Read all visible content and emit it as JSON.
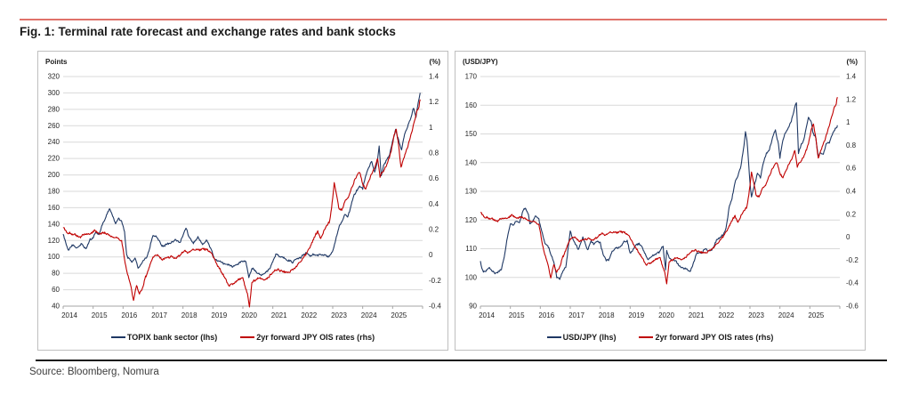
{
  "figure": {
    "title": "Fig. 1: Terminal rate forecast and exchange rates and bank stocks",
    "source": "Source: Bloomberg, Nomura",
    "accent_rule_color": "#e0726a",
    "bottom_rule_color": "#1a1a1a"
  },
  "colors": {
    "blue": "#1f3864",
    "red": "#c00000",
    "grid": "#d9d9d9",
    "axis": "#a6a6a6",
    "tick_text": "#262626"
  },
  "series_points": {
    "topix": [
      [
        2014.0,
        128
      ],
      [
        2014.1,
        115
      ],
      [
        2014.17,
        107
      ],
      [
        2014.3,
        112
      ],
      [
        2014.45,
        108
      ],
      [
        2014.6,
        113
      ],
      [
        2014.75,
        110
      ],
      [
        2014.9,
        120
      ],
      [
        2015.0,
        122
      ],
      [
        2015.1,
        130
      ],
      [
        2015.2,
        128
      ],
      [
        2015.35,
        143
      ],
      [
        2015.45,
        152
      ],
      [
        2015.55,
        158
      ],
      [
        2015.65,
        148
      ],
      [
        2015.75,
        138
      ],
      [
        2015.85,
        146
      ],
      [
        2015.95,
        142
      ],
      [
        2016.05,
        128
      ],
      [
        2016.12,
        100
      ],
      [
        2016.2,
        95
      ],
      [
        2016.3,
        90
      ],
      [
        2016.4,
        96
      ],
      [
        2016.5,
        84
      ],
      [
        2016.6,
        88
      ],
      [
        2016.7,
        94
      ],
      [
        2016.8,
        98
      ],
      [
        2016.9,
        110
      ],
      [
        2017.0,
        124
      ],
      [
        2017.1,
        126
      ],
      [
        2017.2,
        120
      ],
      [
        2017.3,
        114
      ],
      [
        2017.45,
        118
      ],
      [
        2017.6,
        120
      ],
      [
        2017.75,
        124
      ],
      [
        2017.9,
        120
      ],
      [
        2018.0,
        130
      ],
      [
        2018.1,
        138
      ],
      [
        2018.2,
        126
      ],
      [
        2018.35,
        120
      ],
      [
        2018.5,
        126
      ],
      [
        2018.65,
        118
      ],
      [
        2018.8,
        122
      ],
      [
        2018.95,
        112
      ],
      [
        2019.05,
        100
      ],
      [
        2019.2,
        98
      ],
      [
        2019.35,
        94
      ],
      [
        2019.5,
        92
      ],
      [
        2019.65,
        89
      ],
      [
        2019.8,
        93
      ],
      [
        2019.95,
        98
      ],
      [
        2020.1,
        97
      ],
      [
        2020.2,
        78
      ],
      [
        2020.3,
        88
      ],
      [
        2020.45,
        84
      ],
      [
        2020.6,
        80
      ],
      [
        2020.75,
        83
      ],
      [
        2020.9,
        88
      ],
      [
        2021.0,
        97
      ],
      [
        2021.1,
        106
      ],
      [
        2021.2,
        103
      ],
      [
        2021.35,
        99
      ],
      [
        2021.5,
        96
      ],
      [
        2021.65,
        94
      ],
      [
        2021.8,
        99
      ],
      [
        2021.95,
        102
      ],
      [
        2022.1,
        108
      ],
      [
        2022.25,
        104
      ],
      [
        2022.4,
        106
      ],
      [
        2022.55,
        103
      ],
      [
        2022.7,
        105
      ],
      [
        2022.85,
        102
      ],
      [
        2023.0,
        108
      ],
      [
        2023.1,
        120
      ],
      [
        2023.2,
        133
      ],
      [
        2023.3,
        142
      ],
      [
        2023.4,
        150
      ],
      [
        2023.5,
        147
      ],
      [
        2023.6,
        158
      ],
      [
        2023.7,
        172
      ],
      [
        2023.8,
        180
      ],
      [
        2023.9,
        186
      ],
      [
        2024.0,
        182
      ],
      [
        2024.1,
        196
      ],
      [
        2024.2,
        206
      ],
      [
        2024.3,
        214
      ],
      [
        2024.4,
        200
      ],
      [
        2024.5,
        216
      ],
      [
        2024.55,
        232
      ],
      [
        2024.62,
        196
      ],
      [
        2024.7,
        210
      ],
      [
        2024.8,
        218
      ],
      [
        2024.9,
        224
      ],
      [
        2025.0,
        238
      ],
      [
        2025.1,
        252
      ],
      [
        2025.2,
        240
      ],
      [
        2025.3,
        228
      ],
      [
        2025.4,
        248
      ],
      [
        2025.5,
        258
      ],
      [
        2025.6,
        268
      ],
      [
        2025.7,
        282
      ],
      [
        2025.78,
        272
      ],
      [
        2025.85,
        288
      ],
      [
        2025.92,
        300
      ]
    ],
    "usdjpy": [
      [
        2014.0,
        105.5
      ],
      [
        2014.05,
        103
      ],
      [
        2014.1,
        102
      ],
      [
        2014.2,
        102.5
      ],
      [
        2014.3,
        103.5
      ],
      [
        2014.4,
        102
      ],
      [
        2014.5,
        101.8
      ],
      [
        2014.6,
        102
      ],
      [
        2014.7,
        103
      ],
      [
        2014.8,
        108
      ],
      [
        2014.9,
        115
      ],
      [
        2015.0,
        119
      ],
      [
        2015.1,
        118.5
      ],
      [
        2015.2,
        120
      ],
      [
        2015.3,
        119.5
      ],
      [
        2015.42,
        124
      ],
      [
        2015.5,
        125.2
      ],
      [
        2015.6,
        123
      ],
      [
        2015.65,
        119.5
      ],
      [
        2015.75,
        120.5
      ],
      [
        2015.85,
        122.5
      ],
      [
        2015.95,
        121
      ],
      [
        2016.05,
        117
      ],
      [
        2016.15,
        113
      ],
      [
        2016.25,
        111.5
      ],
      [
        2016.35,
        108.5
      ],
      [
        2016.45,
        106.5
      ],
      [
        2016.55,
        101
      ],
      [
        2016.65,
        100.5
      ],
      [
        2016.75,
        103
      ],
      [
        2016.85,
        104.5
      ],
      [
        2016.92,
        110
      ],
      [
        2017.0,
        117
      ],
      [
        2017.05,
        115
      ],
      [
        2017.15,
        112.5
      ],
      [
        2017.25,
        110
      ],
      [
        2017.35,
        111.5
      ],
      [
        2017.42,
        114
      ],
      [
        2017.5,
        112
      ],
      [
        2017.58,
        109.5
      ],
      [
        2017.7,
        113
      ],
      [
        2017.8,
        112
      ],
      [
        2017.9,
        113.5
      ],
      [
        2018.0,
        112.5
      ],
      [
        2018.1,
        108
      ],
      [
        2018.2,
        105.8
      ],
      [
        2018.3,
        107
      ],
      [
        2018.4,
        109.5
      ],
      [
        2018.5,
        110.5
      ],
      [
        2018.6,
        111
      ],
      [
        2018.7,
        112
      ],
      [
        2018.8,
        113.5
      ],
      [
        2018.9,
        113
      ],
      [
        2019.0,
        108.5
      ],
      [
        2019.1,
        110
      ],
      [
        2019.2,
        111
      ],
      [
        2019.3,
        111.5
      ],
      [
        2019.4,
        110
      ],
      [
        2019.5,
        107.8
      ],
      [
        2019.6,
        106
      ],
      [
        2019.7,
        107
      ],
      [
        2019.8,
        108
      ],
      [
        2019.9,
        109
      ],
      [
        2020.0,
        109.5
      ],
      [
        2020.1,
        111.5
      ],
      [
        2020.18,
        103
      ],
      [
        2020.22,
        110
      ],
      [
        2020.3,
        107.5
      ],
      [
        2020.4,
        107
      ],
      [
        2020.5,
        106.8
      ],
      [
        2020.6,
        105.5
      ],
      [
        2020.7,
        104.5
      ],
      [
        2020.8,
        104
      ],
      [
        2020.9,
        103.8
      ],
      [
        2021.0,
        103
      ],
      [
        2021.1,
        105.5
      ],
      [
        2021.2,
        108.8
      ],
      [
        2021.3,
        109.5
      ],
      [
        2021.4,
        109
      ],
      [
        2021.5,
        110.5
      ],
      [
        2021.6,
        109.8
      ],
      [
        2021.7,
        110
      ],
      [
        2021.8,
        111.5
      ],
      [
        2021.9,
        113.8
      ],
      [
        2022.0,
        114.5
      ],
      [
        2022.1,
        115
      ],
      [
        2022.2,
        118
      ],
      [
        2022.3,
        125
      ],
      [
        2022.4,
        128.5
      ],
      [
        2022.5,
        134
      ],
      [
        2022.6,
        136
      ],
      [
        2022.7,
        139
      ],
      [
        2022.8,
        146
      ],
      [
        2022.85,
        151
      ],
      [
        2022.9,
        148
      ],
      [
        2023.0,
        133
      ],
      [
        2023.05,
        128
      ],
      [
        2023.15,
        132
      ],
      [
        2023.25,
        136
      ],
      [
        2023.35,
        134
      ],
      [
        2023.45,
        140
      ],
      [
        2023.55,
        143
      ],
      [
        2023.65,
        145
      ],
      [
        2023.75,
        148.5
      ],
      [
        2023.85,
        151.5
      ],
      [
        2023.95,
        147
      ],
      [
        2024.0,
        142
      ],
      [
        2024.1,
        148
      ],
      [
        2024.2,
        151
      ],
      [
        2024.3,
        153
      ],
      [
        2024.4,
        156
      ],
      [
        2024.5,
        160.5
      ],
      [
        2024.55,
        161.5
      ],
      [
        2024.62,
        144
      ],
      [
        2024.7,
        147
      ],
      [
        2024.8,
        149
      ],
      [
        2024.9,
        154
      ],
      [
        2024.95,
        157
      ],
      [
        2025.05,
        155
      ],
      [
        2025.1,
        151
      ],
      [
        2025.2,
        149
      ],
      [
        2025.28,
        142.5
      ],
      [
        2025.35,
        144
      ],
      [
        2025.45,
        143.5
      ],
      [
        2025.55,
        147
      ],
      [
        2025.65,
        147.5
      ],
      [
        2025.75,
        150
      ],
      [
        2025.85,
        152
      ],
      [
        2025.92,
        153
      ]
    ],
    "ois": [
      [
        2014.0,
        0.22
      ],
      [
        2014.15,
        0.18
      ],
      [
        2014.3,
        0.17
      ],
      [
        2014.5,
        0.15
      ],
      [
        2014.7,
        0.16
      ],
      [
        2014.9,
        0.14
      ],
      [
        2015.05,
        0.17
      ],
      [
        2015.2,
        0.14
      ],
      [
        2015.35,
        0.16
      ],
      [
        2015.5,
        0.15
      ],
      [
        2015.65,
        0.13
      ],
      [
        2015.8,
        0.12
      ],
      [
        2015.95,
        0.1
      ],
      [
        2016.05,
        -0.05
      ],
      [
        2016.15,
        -0.18
      ],
      [
        2016.25,
        -0.24
      ],
      [
        2016.35,
        -0.38
      ],
      [
        2016.45,
        -0.25
      ],
      [
        2016.55,
        -0.31
      ],
      [
        2016.65,
        -0.28
      ],
      [
        2016.75,
        -0.18
      ],
      [
        2016.9,
        -0.1
      ],
      [
        2017.0,
        -0.04
      ],
      [
        2017.15,
        -0.02
      ],
      [
        2017.3,
        -0.06
      ],
      [
        2017.45,
        -0.04
      ],
      [
        2017.6,
        -0.03
      ],
      [
        2017.75,
        -0.05
      ],
      [
        2017.9,
        -0.02
      ],
      [
        2018.05,
        0.01
      ],
      [
        2018.2,
        0.0
      ],
      [
        2018.35,
        0.02
      ],
      [
        2018.5,
        0.03
      ],
      [
        2018.65,
        0.04
      ],
      [
        2018.8,
        0.02
      ],
      [
        2018.95,
        0.0
      ],
      [
        2019.1,
        -0.08
      ],
      [
        2019.25,
        -0.14
      ],
      [
        2019.4,
        -0.2
      ],
      [
        2019.55,
        -0.26
      ],
      [
        2019.7,
        -0.24
      ],
      [
        2019.85,
        -0.2
      ],
      [
        2020.0,
        -0.17
      ],
      [
        2020.15,
        -0.28
      ],
      [
        2020.22,
        -0.38
      ],
      [
        2020.3,
        -0.2
      ],
      [
        2020.45,
        -0.17
      ],
      [
        2020.6,
        -0.16
      ],
      [
        2020.75,
        -0.17
      ],
      [
        2020.9,
        -0.14
      ],
      [
        2021.05,
        -0.12
      ],
      [
        2021.2,
        -0.1
      ],
      [
        2021.35,
        -0.12
      ],
      [
        2021.5,
        -0.13
      ],
      [
        2021.65,
        -0.11
      ],
      [
        2021.8,
        -0.09
      ],
      [
        2021.95,
        -0.06
      ],
      [
        2022.1,
        -0.02
      ],
      [
        2022.2,
        0.02
      ],
      [
        2022.3,
        0.08
      ],
      [
        2022.4,
        0.13
      ],
      [
        2022.5,
        0.17
      ],
      [
        2022.6,
        0.11
      ],
      [
        2022.7,
        0.18
      ],
      [
        2022.8,
        0.22
      ],
      [
        2022.9,
        0.26
      ],
      [
        2023.0,
        0.44
      ],
      [
        2023.05,
        0.56
      ],
      [
        2023.12,
        0.48
      ],
      [
        2023.2,
        0.36
      ],
      [
        2023.3,
        0.34
      ],
      [
        2023.4,
        0.4
      ],
      [
        2023.5,
        0.44
      ],
      [
        2023.6,
        0.5
      ],
      [
        2023.7,
        0.56
      ],
      [
        2023.8,
        0.6
      ],
      [
        2023.9,
        0.64
      ],
      [
        2024.0,
        0.55
      ],
      [
        2024.1,
        0.5
      ],
      [
        2024.2,
        0.56
      ],
      [
        2024.3,
        0.62
      ],
      [
        2024.4,
        0.66
      ],
      [
        2024.5,
        0.74
      ],
      [
        2024.58,
        0.6
      ],
      [
        2024.65,
        0.64
      ],
      [
        2024.75,
        0.68
      ],
      [
        2024.85,
        0.72
      ],
      [
        2024.95,
        0.8
      ],
      [
        2025.05,
        0.92
      ],
      [
        2025.12,
        0.96
      ],
      [
        2025.2,
        0.84
      ],
      [
        2025.28,
        0.66
      ],
      [
        2025.35,
        0.72
      ],
      [
        2025.45,
        0.8
      ],
      [
        2025.55,
        0.88
      ],
      [
        2025.65,
        0.96
      ],
      [
        2025.75,
        1.06
      ],
      [
        2025.82,
        1.12
      ],
      [
        2025.88,
        1.16
      ],
      [
        2025.92,
        1.22
      ]
    ]
  },
  "chart_data": [
    {
      "type": "line",
      "panel": "left",
      "left_axis": {
        "label": "Points",
        "min": 40,
        "max": 320,
        "step": 20
      },
      "right_axis": {
        "label": "(%)",
        "min": -0.4,
        "max": 1.4,
        "step": 0.2
      },
      "x_axis": {
        "start": 2014,
        "end": 2026,
        "labels": [
          "2014",
          "2015",
          "2016",
          "2017",
          "2018",
          "2019",
          "2020",
          "2021",
          "2022",
          "2023",
          "2024",
          "2025"
        ]
      },
      "grid": true,
      "legend_position": "bottom",
      "series": [
        {
          "name": "TOPIX bank sector (lhs)",
          "data_key": "topix",
          "axis": "left",
          "color_key": "blue"
        },
        {
          "name": "2yr forward JPY OIS rates (rhs)",
          "data_key": "ois",
          "axis": "right",
          "color_key": "red"
        }
      ]
    },
    {
      "type": "line",
      "panel": "right",
      "left_axis": {
        "label": "(USD/JPY)",
        "min": 90,
        "max": 170,
        "step": 10
      },
      "right_axis": {
        "label": "(%)",
        "min": -0.6,
        "max": 1.4,
        "step": 0.2
      },
      "x_axis": {
        "start": 2014,
        "end": 2026,
        "labels": [
          "2014",
          "2015",
          "2016",
          "2017",
          "2018",
          "2019",
          "2020",
          "2021",
          "2022",
          "2023",
          "2024",
          "2025"
        ]
      },
      "grid": true,
      "legend_position": "bottom",
      "series": [
        {
          "name": "USD/JPY (lhs)",
          "data_key": "usdjpy",
          "axis": "left",
          "color_key": "blue"
        },
        {
          "name": "2yr forward JPY OIS rates (rhs)",
          "data_key": "ois",
          "axis": "right",
          "color_key": "red"
        }
      ]
    }
  ]
}
